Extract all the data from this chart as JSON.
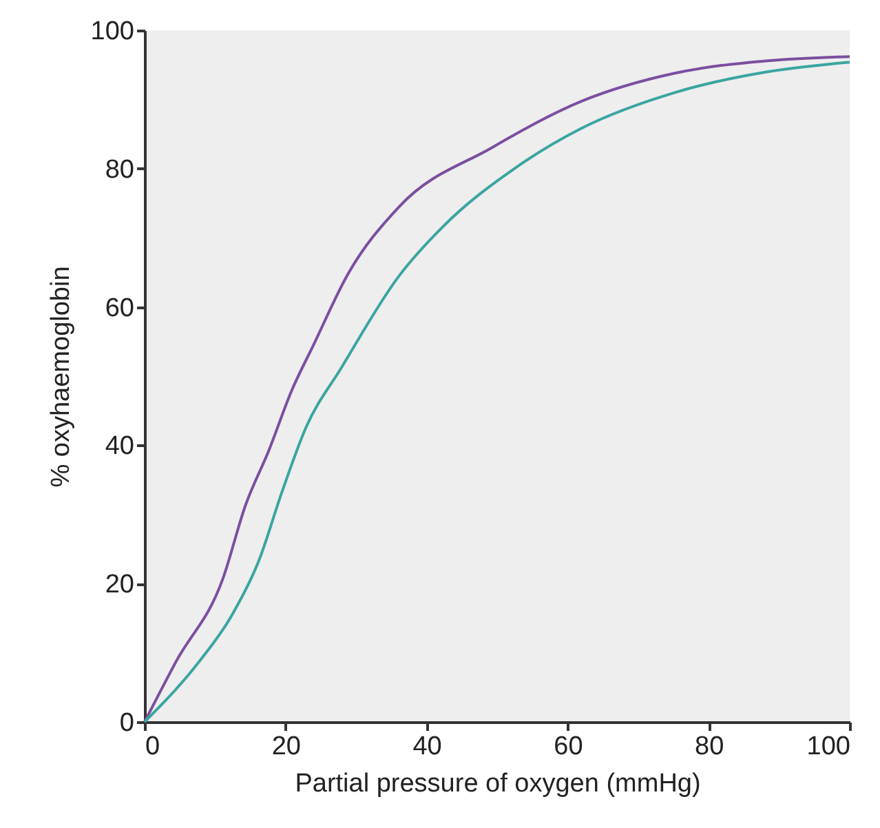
{
  "chart_data": {
    "type": "line",
    "xlabel": "Partial pressure of oxygen (mmHg)",
    "ylabel": "% oxyhaemoglobin",
    "xlim": [
      0,
      100
    ],
    "ylim": [
      0,
      100
    ],
    "xticks": [
      0,
      20,
      40,
      60,
      80,
      100
    ],
    "yticks": [
      0,
      20,
      40,
      60,
      80,
      100
    ],
    "series": [
      {
        "color": "#7b4fa0",
        "x": [
          0,
          4.5,
          11.1,
          14.3,
          17.6,
          20.9,
          24,
          28.7,
          36.1,
          49.2,
          62.1,
          75.2,
          88.3,
          100
        ],
        "values": [
          0,
          8.8,
          20.7,
          31.3,
          39.2,
          48,
          54.6,
          64.5,
          74.5,
          83,
          89.8,
          93.8,
          95.6,
          96.2
        ]
      },
      {
        "color": "#3aa5a0",
        "x": [
          0,
          7.8,
          12.3,
          16.2,
          19.5,
          22.9,
          27.9,
          36.1,
          42.6,
          52.3,
          62.1,
          75.2,
          88.3,
          100
        ],
        "values": [
          0,
          8.8,
          15.3,
          23.3,
          33.3,
          42.6,
          51.2,
          64.5,
          71.9,
          79.9,
          85.9,
          91,
          94,
          95.4
        ]
      }
    ]
  }
}
